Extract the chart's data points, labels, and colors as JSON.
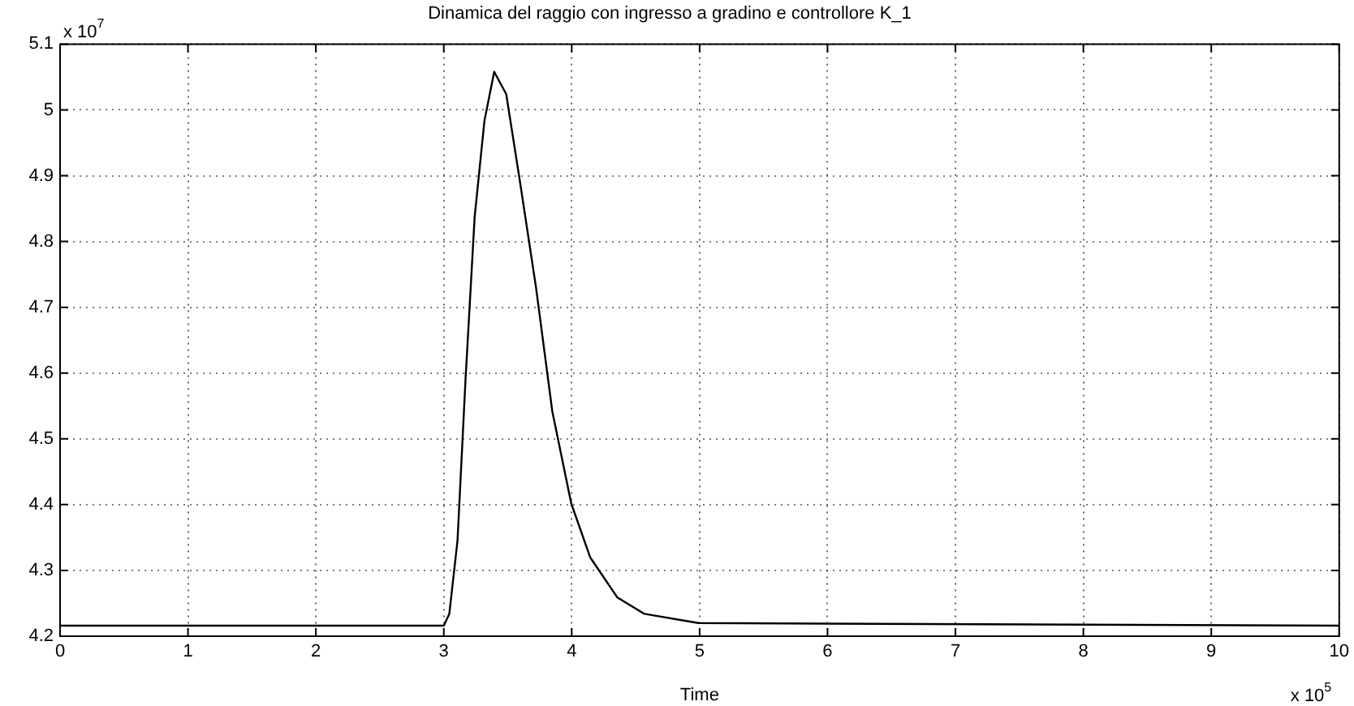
{
  "chart_data": {
    "type": "line",
    "title": "Dinamica del raggio con ingresso a gradino e controllore K_1",
    "xlabel": "Time",
    "annotations": [
      "x 10$^{7}$",
      "x 10$^{5}$"
    ],
    "x": [
      0,
      3.0,
      3.043,
      3.107,
      3.17,
      3.241,
      3.318,
      3.394,
      3.488,
      3.593,
      3.721,
      3.848,
      3.996,
      4.144,
      4.356,
      4.568,
      4.991,
      10
    ],
    "series": [
      {
        "color": "#000000",
        "values": [
          4.216,
          4.216,
          4.234,
          4.345,
          4.591,
          4.837,
          4.984,
          5.058,
          5.024,
          4.894,
          4.73,
          4.542,
          4.402,
          4.32,
          4.259,
          4.234,
          4.22,
          4.216
        ]
      }
    ],
    "xlim": [
      0,
      10
    ],
    "xticks": [
      0,
      1,
      2,
      3,
      4,
      5,
      6,
      7,
      8,
      9,
      10
    ],
    "ylim": [
      4.2,
      5.1
    ],
    "yticks": [
      4.2,
      4.3,
      4.4,
      4.5,
      4.6,
      4.7,
      4.8,
      4.9,
      5,
      5.1
    ],
    "grid": true,
    "legend": false,
    "marker": "none",
    "line_style": "solid"
  }
}
